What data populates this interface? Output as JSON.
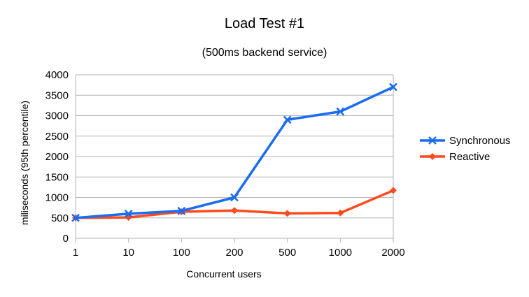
{
  "chart_data": {
    "type": "line",
    "title": "Load Test #1",
    "subtitle": "(500ms backend service)",
    "xlabel": "Concurrent users",
    "ylabel": "miliseconds (95th percentile)",
    "categories": [
      "1",
      "10",
      "100",
      "200",
      "500",
      "1000",
      "2000"
    ],
    "ylim": [
      0,
      4000
    ],
    "yticks": [
      0,
      500,
      1000,
      1500,
      2000,
      2500,
      3000,
      3500,
      4000
    ],
    "grid": true,
    "legend_position": "right",
    "series": [
      {
        "name": "Synchronous",
        "color": "#1a6cf2",
        "marker": "x",
        "values": [
          500,
          600,
          670,
          1000,
          2900,
          3100,
          3700
        ]
      },
      {
        "name": "Reactive",
        "color": "#ff4a1c",
        "marker": "diamond",
        "values": [
          500,
          510,
          650,
          680,
          610,
          620,
          1170
        ]
      }
    ]
  }
}
